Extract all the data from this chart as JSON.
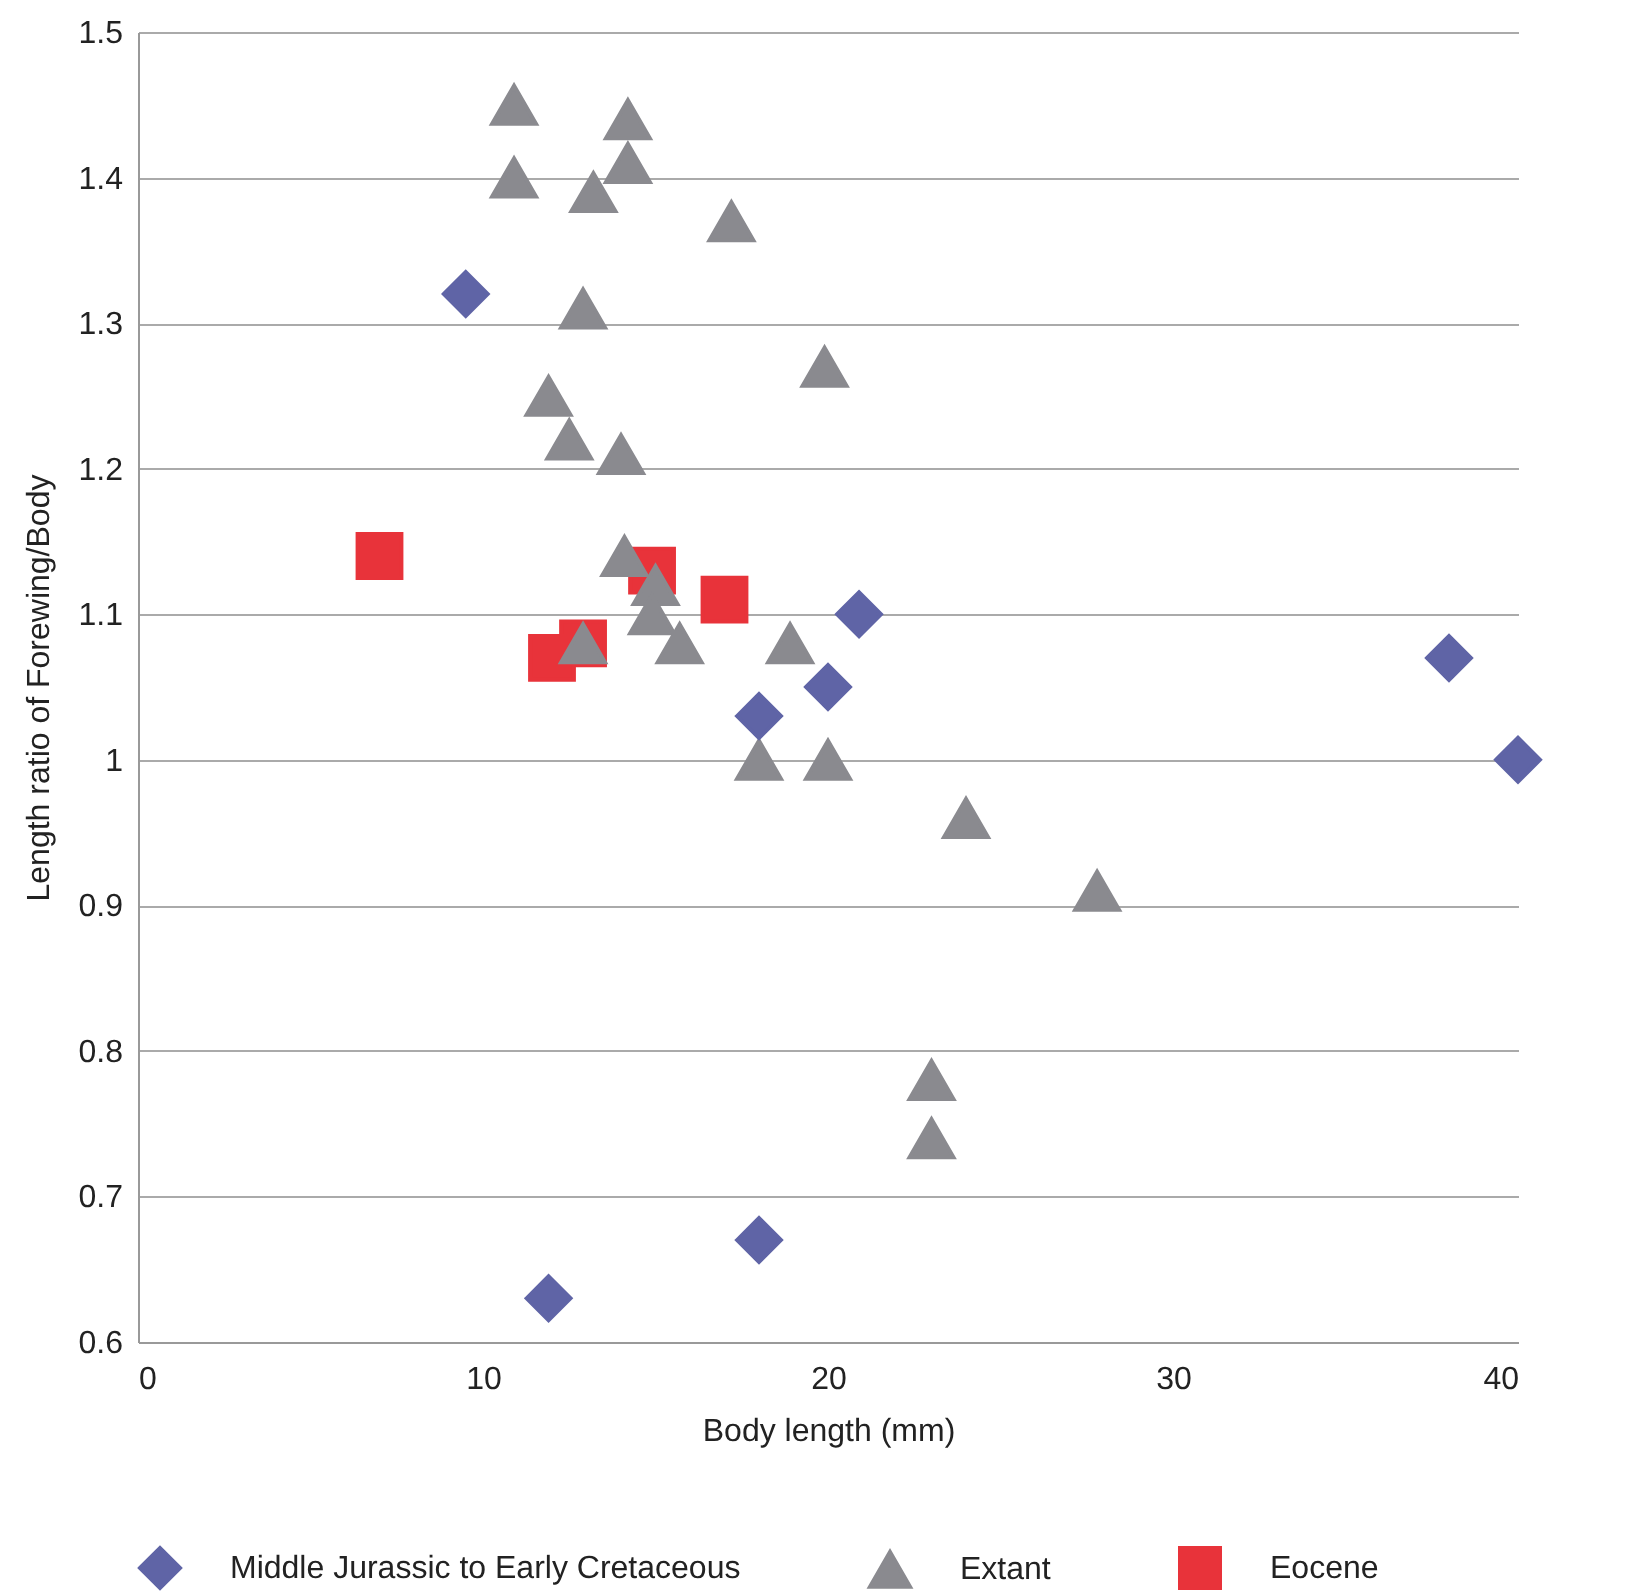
{
  "chart_data": {
    "type": "scatter",
    "xlabel": "Body length (mm)",
    "ylabel": "Length ratio of Forewing/Body",
    "xlim": [
      0,
      40
    ],
    "xticks": [
      0,
      10,
      20,
      30,
      40
    ],
    "ylim": [
      0.6,
      1.5
    ],
    "yticks": [
      0.6,
      0.7,
      0.8,
      0.9,
      {
        "value": 1,
        "label": "1"
      },
      1.1,
      1.2,
      1.3,
      1.4,
      1.5
    ],
    "grid": "y",
    "legend": "bottom",
    "series": [
      {
        "name": "Middle Jurassic to Early Cretaceous",
        "color": "#5f64a6",
        "marker": "diamond",
        "x": [
          9.5,
          20.9,
          18.0,
          20.0,
          38.0,
          40.0,
          11.9,
          18.0
        ],
        "values": [
          1.32,
          1.1,
          1.03,
          1.05,
          1.07,
          1.0,
          0.63,
          0.67
        ]
      },
      {
        "name": "Extant",
        "color": "#8a8a8f",
        "marker": "triangle",
        "x": [
          10.9,
          14.2,
          10.9,
          14.2,
          13.2,
          17.2,
          12.9,
          19.9,
          11.9,
          12.5,
          14.0,
          14.1,
          15.0,
          14.9,
          12.9,
          15.7,
          18.9,
          18.0,
          20.0,
          24.0,
          27.8,
          23.0,
          23.0
        ],
        "values": [
          1.45,
          1.44,
          1.4,
          1.41,
          1.39,
          1.37,
          1.31,
          1.27,
          1.25,
          1.22,
          1.21,
          1.14,
          1.12,
          1.1,
          1.08,
          1.08,
          1.08,
          1.0,
          1.0,
          0.96,
          0.91,
          0.78,
          0.74
        ]
      },
      {
        "name": "Eocene",
        "color": "#e8333a",
        "marker": "square",
        "x": [
          7.0,
          14.9,
          17.0,
          12.9,
          12.0
        ],
        "values": [
          1.14,
          1.13,
          1.11,
          1.08,
          1.07
        ]
      }
    ]
  }
}
